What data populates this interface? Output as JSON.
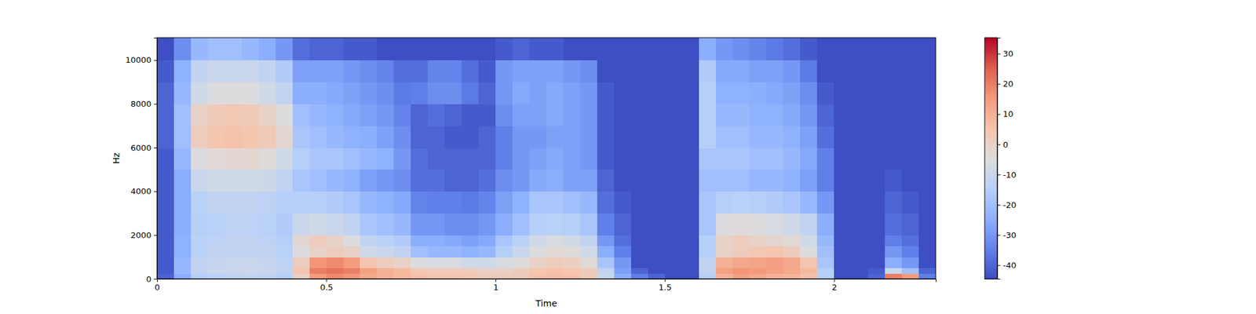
{
  "chart_data": {
    "type": "heatmap",
    "x_label": "Time",
    "y_label": "Hz",
    "xlim": [
      0,
      2.3
    ],
    "ylim": [
      0,
      11025
    ],
    "xticks": [
      0,
      0.5,
      1,
      1.5,
      2
    ],
    "yticks": [
      0,
      2000,
      4000,
      6000,
      8000,
      10000
    ],
    "x_edges": [
      0,
      0.05,
      0.1,
      0.15,
      0.2,
      0.25,
      0.3,
      0.35,
      0.4,
      0.45,
      0.5,
      0.55,
      0.6,
      0.65,
      0.7,
      0.75,
      0.8,
      0.85,
      0.9,
      0.95,
      1,
      1.05,
      1.1,
      1.15,
      1.2,
      1.25,
      1.3,
      1.35,
      1.4,
      1.45,
      1.5,
      1.55,
      1.6,
      1.65,
      1.7,
      1.75,
      1.8,
      1.85,
      1.9,
      1.95,
      2,
      2.05,
      2.1,
      2.15,
      2.2,
      2.25,
      2.3
    ],
    "y_edges": [
      0,
      250,
      500,
      1000,
      1500,
      2000,
      3000,
      4000,
      5000,
      6000,
      7000,
      8000,
      9000,
      10000,
      11025
    ],
    "cells": [
      [
        -40,
        -25,
        -15,
        -14,
        -12,
        -12,
        -13,
        -15,
        0,
        15,
        18,
        16,
        12,
        10,
        8,
        6,
        5,
        5,
        4,
        3,
        2,
        3,
        6,
        7,
        6,
        3,
        -10,
        -25,
        -35,
        -40,
        -44,
        -44,
        -15,
        10,
        14,
        12,
        10,
        9,
        6,
        -15,
        -44,
        -44,
        -40,
        20,
        15,
        -35
      ],
      [
        -42,
        -22,
        -12,
        -10,
        -10,
        -9,
        -10,
        -12,
        5,
        20,
        22,
        20,
        14,
        10,
        8,
        4,
        3,
        3,
        2,
        0,
        0,
        2,
        5,
        6,
        5,
        2,
        -12,
        -28,
        -40,
        -44,
        -44,
        -44,
        -12,
        14,
        16,
        15,
        14,
        12,
        8,
        -15,
        -44,
        -44,
        -42,
        -10,
        -20,
        -40
      ],
      [
        -42,
        -22,
        -12,
        -11,
        -10,
        -10,
        -11,
        -13,
        2,
        16,
        18,
        15,
        5,
        2,
        0,
        -5,
        -6,
        -6,
        -8,
        -8,
        -6,
        -4,
        0,
        2,
        1,
        -3,
        -18,
        -30,
        -44,
        -44,
        -44,
        -44,
        -12,
        10,
        12,
        13,
        14,
        12,
        5,
        -18,
        -44,
        -44,
        -44,
        -25,
        -30,
        -44
      ],
      [
        -42,
        -24,
        -14,
        -12,
        -12,
        -12,
        -12,
        -14,
        -5,
        0,
        2,
        0,
        -8,
        -10,
        -12,
        -20,
        -22,
        -22,
        -24,
        -22,
        -15,
        -10,
        -5,
        -3,
        -4,
        -8,
        -25,
        -35,
        -44,
        -44,
        -44,
        -44,
        -15,
        0,
        2,
        4,
        5,
        2,
        -5,
        -20,
        -44,
        -44,
        -44,
        -30,
        -35,
        -44
      ],
      [
        -42,
        -24,
        -14,
        -13,
        -12,
        -12,
        -13,
        -15,
        -2,
        2,
        0,
        -5,
        -12,
        -14,
        -16,
        -25,
        -25,
        -26,
        -28,
        -26,
        -18,
        -14,
        -8,
        -6,
        -8,
        -12,
        -30,
        -38,
        -44,
        -44,
        -44,
        -44,
        -15,
        0,
        2,
        0,
        -2,
        -3,
        -8,
        -22,
        -44,
        -44,
        -44,
        -35,
        -38,
        -44
      ],
      [
        -42,
        -25,
        -15,
        -14,
        -13,
        -13,
        -14,
        -16,
        -10,
        -8,
        -10,
        -12,
        -18,
        -20,
        -22,
        -30,
        -30,
        -32,
        -32,
        -30,
        -25,
        -20,
        -15,
        -14,
        -15,
        -18,
        -35,
        -40,
        -44,
        -44,
        -44,
        -44,
        -18,
        -5,
        -4,
        -5,
        -6,
        -8,
        -12,
        -25,
        -44,
        -44,
        -44,
        -38,
        -40,
        -44
      ],
      [
        -42,
        -25,
        -14,
        -12,
        -12,
        -12,
        -13,
        -15,
        -15,
        -15,
        -16,
        -18,
        -22,
        -24,
        -26,
        -34,
        -35,
        -35,
        -36,
        -34,
        -28,
        -24,
        -18,
        -18,
        -20,
        -22,
        -38,
        -42,
        -44,
        -44,
        -44,
        -44,
        -18,
        -15,
        -14,
        -15,
        -16,
        -18,
        -22,
        -30,
        -44,
        -44,
        -44,
        -40,
        -42,
        -44
      ],
      [
        -42,
        -25,
        -10,
        -8,
        -8,
        -8,
        -9,
        -12,
        -18,
        -20,
        -22,
        -24,
        -28,
        -30,
        -32,
        -38,
        -38,
        -40,
        -40,
        -38,
        -32,
        -30,
        -26,
        -25,
        -28,
        -28,
        -40,
        -44,
        -44,
        -44,
        -44,
        -44,
        -20,
        -20,
        -20,
        -22,
        -22,
        -24,
        -28,
        -35,
        -44,
        -44,
        -44,
        -42,
        -44,
        -44
      ],
      [
        -42,
        -22,
        -5,
        -3,
        -2,
        -2,
        -4,
        -8,
        -15,
        -18,
        -18,
        -20,
        -22,
        -24,
        -30,
        -38,
        -40,
        -40,
        -40,
        -40,
        -35,
        -30,
        -28,
        -26,
        -28,
        -30,
        -42,
        -44,
        -44,
        -44,
        -44,
        -44,
        -18,
        -18,
        -18,
        -20,
        -20,
        -22,
        -26,
        -35,
        -44,
        -44,
        -44,
        -44,
        -44,
        -44
      ],
      [
        -40,
        -20,
        2,
        5,
        6,
        5,
        3,
        -2,
        -18,
        -20,
        -22,
        -24,
        -25,
        -28,
        -32,
        -40,
        -40,
        -42,
        -42,
        -40,
        -35,
        -30,
        -30,
        -28,
        -28,
        -30,
        -42,
        -44,
        -44,
        -44,
        -44,
        -44,
        -15,
        -20,
        -20,
        -22,
        -22,
        -24,
        -28,
        -38,
        -44,
        -44,
        -44,
        -44,
        -44,
        -44
      ],
      [
        -40,
        -20,
        0,
        3,
        4,
        3,
        0,
        -5,
        -20,
        -22,
        -24,
        -26,
        -28,
        -30,
        -34,
        -40,
        -38,
        -40,
        -42,
        -42,
        -32,
        -28,
        -28,
        -26,
        -28,
        -30,
        -42,
        -44,
        -44,
        -44,
        -44,
        -44,
        -15,
        -22,
        -22,
        -24,
        -24,
        -26,
        -30,
        -40,
        -44,
        -44,
        -44,
        -44,
        -44,
        -44
      ],
      [
        -40,
        -22,
        -8,
        -5,
        -5,
        -5,
        -8,
        -12,
        -25,
        -25,
        -26,
        -28,
        -30,
        -32,
        -36,
        -35,
        -32,
        -32,
        -36,
        -40,
        -30,
        -26,
        -28,
        -26,
        -28,
        -30,
        -42,
        -44,
        -44,
        -44,
        -44,
        -44,
        -15,
        -24,
        -24,
        -25,
        -26,
        -28,
        -32,
        -42,
        -44,
        -44,
        -44,
        -44,
        -44,
        -44
      ],
      [
        -42,
        -24,
        -12,
        -10,
        -10,
        -10,
        -12,
        -16,
        -28,
        -28,
        -28,
        -30,
        -32,
        -34,
        -38,
        -38,
        -34,
        -34,
        -38,
        -42,
        -30,
        -28,
        -28,
        -28,
        -30,
        -32,
        -44,
        -44,
        -44,
        -44,
        -44,
        -44,
        -16,
        -26,
        -26,
        -28,
        -28,
        -30,
        -36,
        -44,
        -44,
        -44,
        -44,
        -44,
        -44,
        -44
      ],
      [
        -44,
        -32,
        -22,
        -20,
        -20,
        -22,
        -25,
        -30,
        -38,
        -40,
        -40,
        -42,
        -42,
        -44,
        -44,
        -44,
        -44,
        -44,
        -44,
        -44,
        -42,
        -40,
        -42,
        -42,
        -44,
        -44,
        -44,
        -44,
        -44,
        -44,
        -44,
        -44,
        -25,
        -30,
        -32,
        -34,
        -36,
        -38,
        -42,
        -44,
        -44,
        -44,
        -44,
        -44,
        -44,
        -44
      ]
    ],
    "zlim": [
      -44.5,
      35.3
    ],
    "zticks": [
      -40,
      -30,
      -20,
      -10,
      0,
      10,
      20,
      30
    ]
  }
}
